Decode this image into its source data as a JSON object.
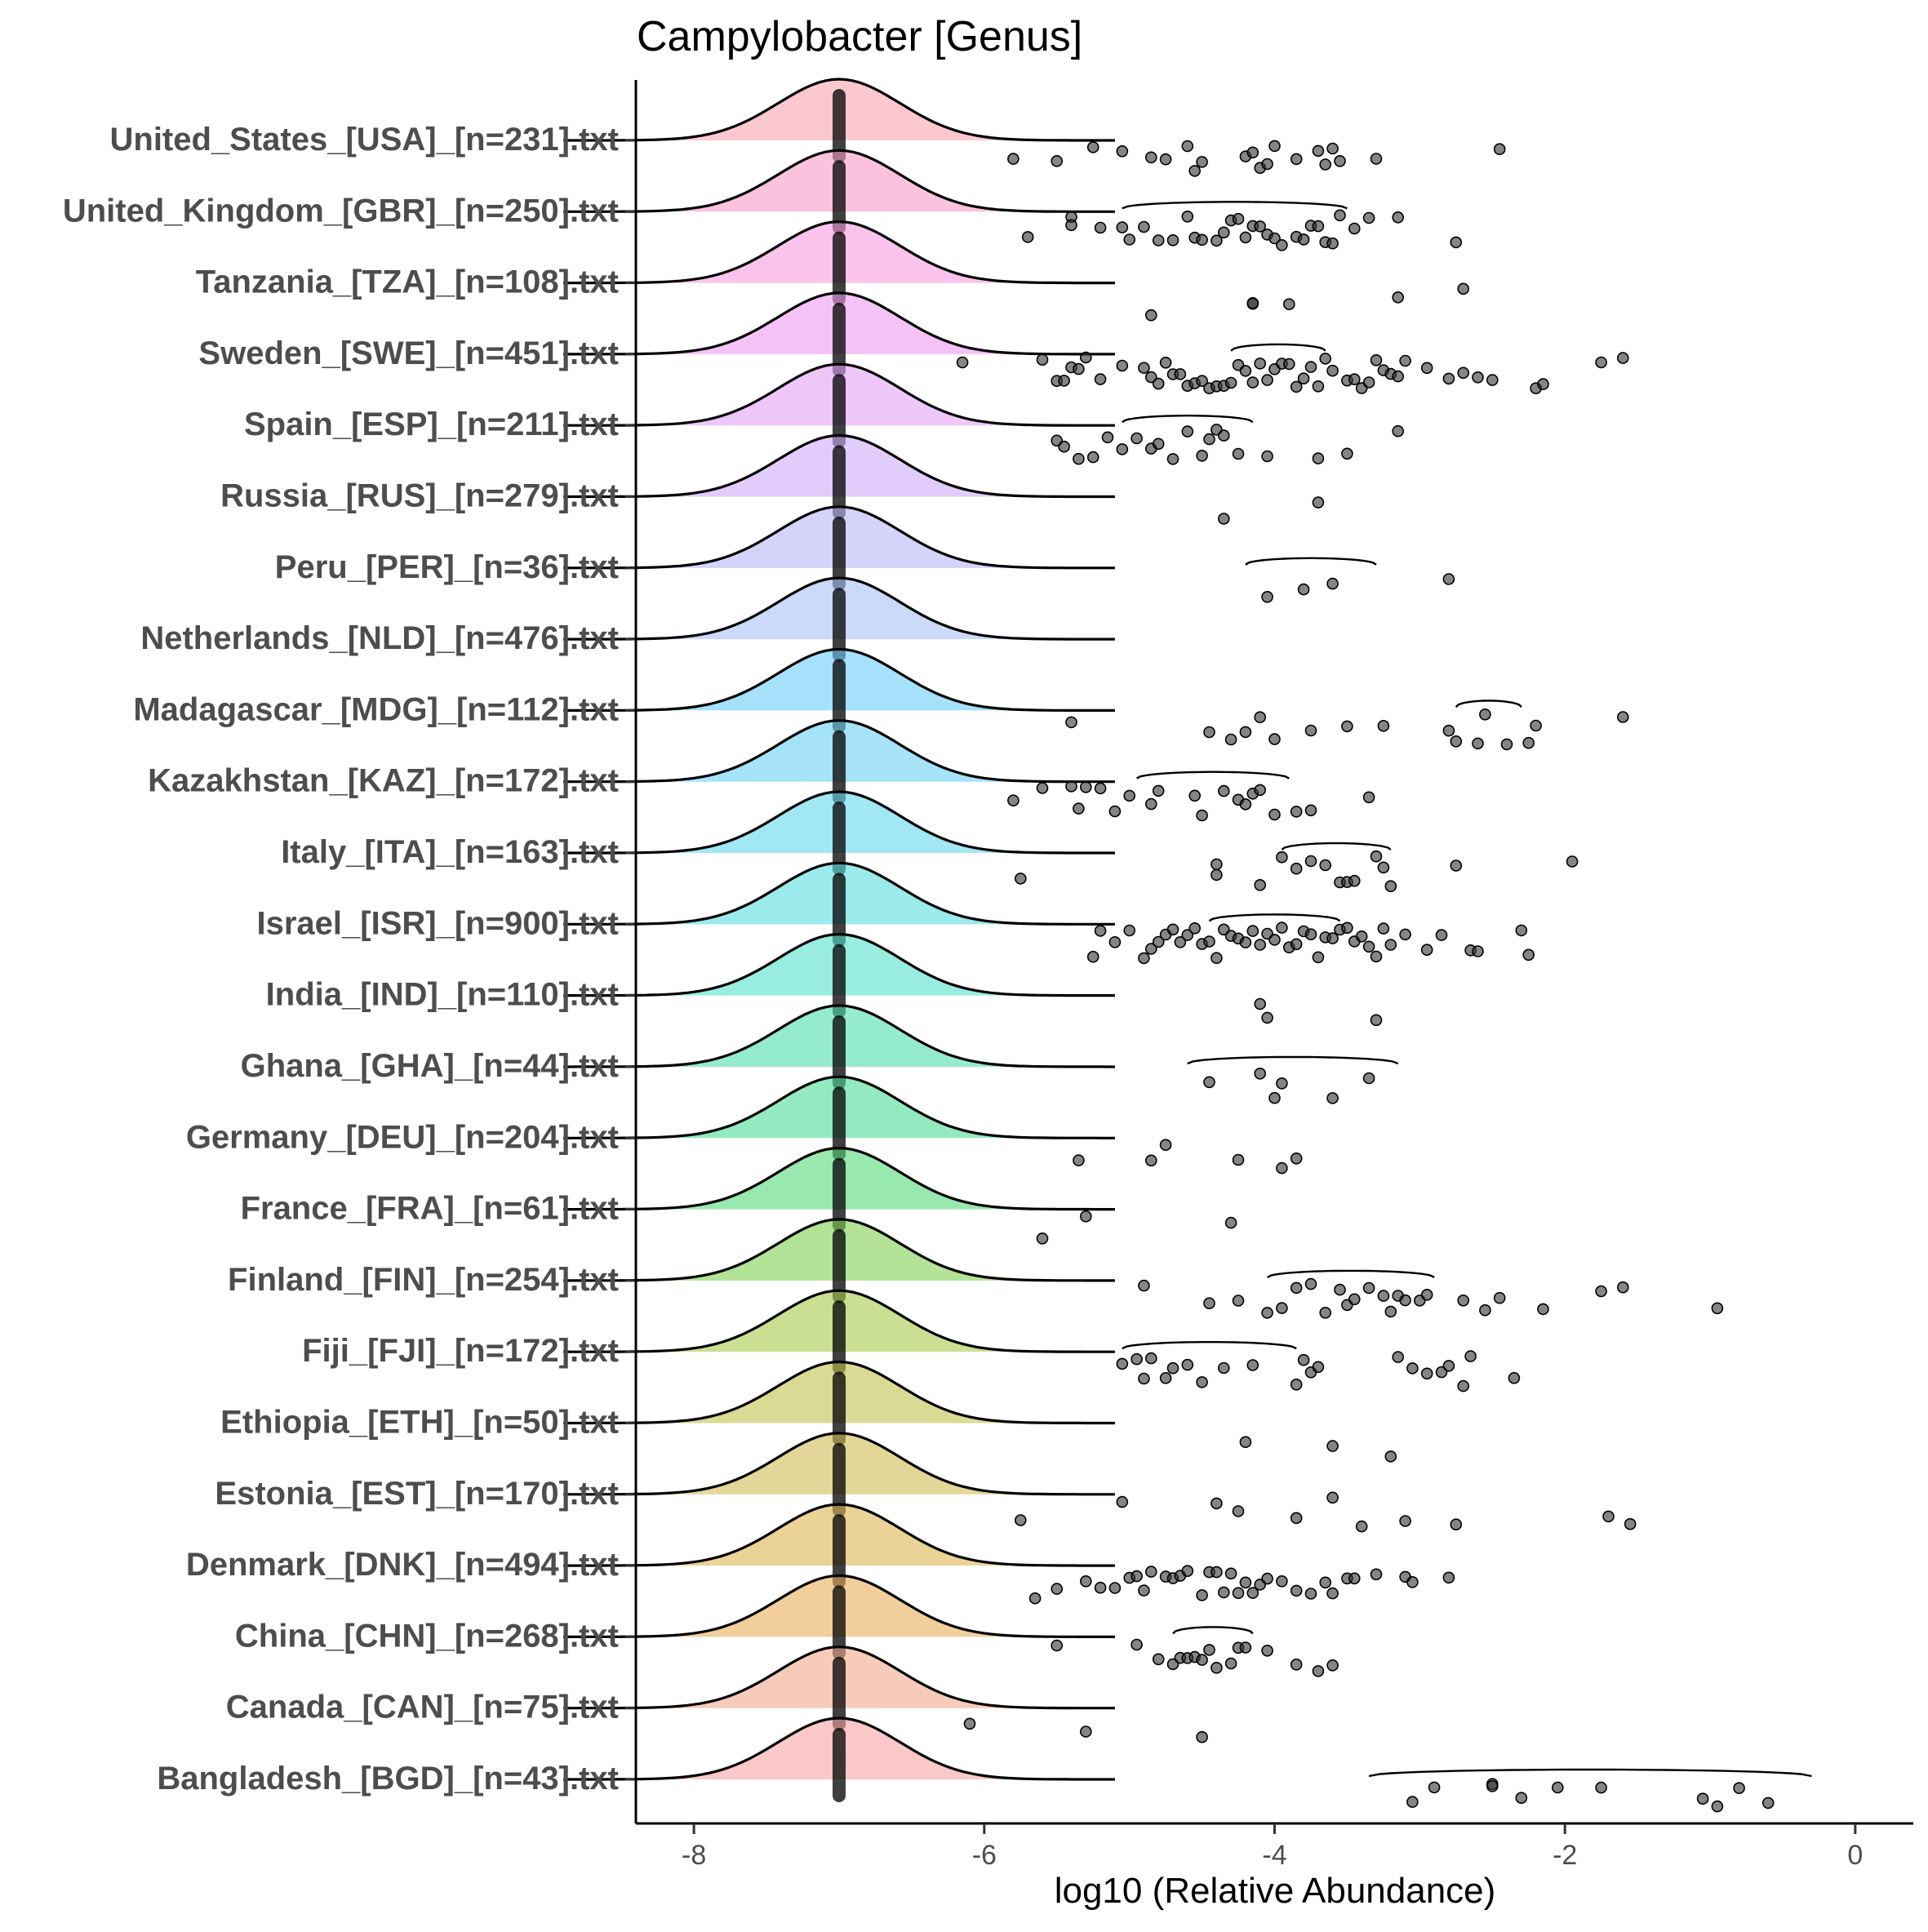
{
  "chart_data": {
    "type": "ridgeline-jitter",
    "title": "Campylobacter [Genus]",
    "xlabel": "log10 (Relative Abundance)",
    "ylabel": "",
    "xlim": [
      -8.4,
      0.4
    ],
    "xticks": [
      -8,
      -6,
      -4,
      -2,
      0
    ],
    "xtick_labels": [
      "-8",
      "-6",
      "-4",
      "-2",
      "0"
    ],
    "zero_placeholder_x": -7,
    "series": [
      {
        "name": "United_States_[USA]_[n=231].txt",
        "color": "#F8A4B0",
        "obs_density": null,
        "points": [
          -5.8,
          -5.5,
          -5.25,
          -5.05,
          -4.85,
          -4.75,
          -4.6,
          -4.55,
          -4.5,
          -4.2,
          -4.15,
          -4.1,
          -4.05,
          -4.0,
          -3.85,
          -3.7,
          -3.65,
          -3.6,
          -3.55,
          -3.3,
          -2.45
        ]
      },
      {
        "name": "United_Kingdom_[GBR]_[n=250].txt",
        "color": "#F899C6",
        "obs_density": [
          -5.05,
          -3.5
        ],
        "points": [
          -5.7,
          -5.4,
          -5.4,
          -5.2,
          -5.05,
          -5.0,
          -4.9,
          -4.8,
          -4.7,
          -4.6,
          -4.55,
          -4.5,
          -4.4,
          -4.35,
          -4.3,
          -4.25,
          -4.2,
          -4.15,
          -4.1,
          -4.05,
          -4.0,
          -3.95,
          -3.85,
          -3.8,
          -3.75,
          -3.7,
          -3.65,
          -3.6,
          -3.55,
          -3.45,
          -3.35,
          -3.15,
          -2.75
        ]
      },
      {
        "name": "Tanzania_[TZA]_[n=108].txt",
        "color": "#F59BE0",
        "obs_density": null,
        "points": [
          -4.85,
          -4.15,
          -4.15,
          -3.9,
          -3.15,
          -2.7
        ]
      },
      {
        "name": "Sweden_[SWE]_[n=451].txt",
        "color": "#EE9AF2",
        "obs_density": [
          -4.3,
          -3.65
        ],
        "points": [
          -6.15,
          -5.6,
          -5.5,
          -5.45,
          -5.4,
          -5.35,
          -5.3,
          -5.2,
          -5.05,
          -4.9,
          -4.85,
          -4.8,
          -4.75,
          -4.7,
          -4.65,
          -4.6,
          -4.55,
          -4.5,
          -4.45,
          -4.4,
          -4.35,
          -4.3,
          -4.25,
          -4.2,
          -4.15,
          -4.1,
          -4.05,
          -4.0,
          -3.95,
          -3.9,
          -3.85,
          -3.8,
          -3.75,
          -3.7,
          -3.65,
          -3.6,
          -3.5,
          -3.45,
          -3.4,
          -3.35,
          -3.3,
          -3.25,
          -3.2,
          -3.15,
          -3.1,
          -2.95,
          -2.8,
          -2.7,
          -2.6,
          -2.5,
          -2.2,
          -2.15,
          -1.75,
          -1.6
        ]
      },
      {
        "name": "Spain_[ESP]_[n=211].txt",
        "color": "#E2A1F7",
        "obs_density": [
          -5.05,
          -4.15
        ],
        "points": [
          -5.5,
          -5.45,
          -5.35,
          -5.25,
          -5.15,
          -5.05,
          -4.95,
          -4.85,
          -4.8,
          -4.7,
          -4.6,
          -4.5,
          -4.45,
          -4.4,
          -4.35,
          -4.25,
          -4.05,
          -3.7,
          -3.5,
          -3.15
        ]
      },
      {
        "name": "Russia_[RUS]_[n=279].txt",
        "color": "#CFAAF8",
        "obs_density": null,
        "points": [
          -4.35,
          -3.7
        ]
      },
      {
        "name": "Peru_[PER]_[n=36].txt",
        "color": "#BBB5F8",
        "obs_density": [
          -4.2,
          -3.3
        ],
        "points": [
          -4.05,
          -3.8,
          -3.6,
          -2.8
        ]
      },
      {
        "name": "Netherlands_[NLD]_[n=476].txt",
        "color": "#A8BFF8",
        "obs_density": null,
        "points": []
      },
      {
        "name": "Madagascar_[MDG]_[n=112].txt",
        "color": "#6ACDF8",
        "obs_density": [
          -2.75,
          -2.3
        ],
        "points": [
          -5.4,
          -4.45,
          -4.3,
          -4.2,
          -4.1,
          -4.0,
          -3.75,
          -3.5,
          -3.25,
          -2.8,
          -2.75,
          -2.6,
          -2.55,
          -2.4,
          -2.25,
          -2.2,
          -1.6
        ]
      },
      {
        "name": "Kazakhstan_[KAZ]_[n=172].txt",
        "color": "#6BD0F4",
        "obs_density": [
          -4.95,
          -3.9
        ],
        "points": [
          -5.8,
          -5.6,
          -5.4,
          -5.35,
          -5.3,
          -5.2,
          -5.1,
          -5.0,
          -4.85,
          -4.8,
          -4.55,
          -4.5,
          -4.35,
          -4.25,
          -4.2,
          -4.15,
          -4.1,
          -4.0,
          -3.85,
          -3.75,
          -3.35
        ]
      },
      {
        "name": "Italy_[ITA]_[n=163].txt",
        "color": "#64D8EC",
        "obs_density": [
          -3.95,
          -3.2
        ],
        "points": [
          -5.75,
          -4.4,
          -4.4,
          -4.1,
          -3.95,
          -3.85,
          -3.75,
          -3.65,
          -3.55,
          -3.5,
          -3.45,
          -3.3,
          -3.25,
          -3.2,
          -2.75,
          -1.95
        ]
      },
      {
        "name": "Israel_[ISR]_[n=900].txt",
        "color": "#5ADCDF",
        "obs_density": [
          -4.45,
          -3.55
        ],
        "points": [
          -5.25,
          -5.2,
          -5.1,
          -5.0,
          -4.9,
          -4.85,
          -4.8,
          -4.75,
          -4.7,
          -4.65,
          -4.6,
          -4.55,
          -4.5,
          -4.45,
          -4.4,
          -4.35,
          -4.3,
          -4.25,
          -4.2,
          -4.15,
          -4.1,
          -4.05,
          -4.0,
          -3.95,
          -3.9,
          -3.85,
          -3.8,
          -3.75,
          -3.7,
          -3.65,
          -3.6,
          -3.55,
          -3.5,
          -3.45,
          -3.4,
          -3.35,
          -3.3,
          -3.25,
          -3.2,
          -3.1,
          -2.95,
          -2.85,
          -2.65,
          -2.6,
          -2.3,
          -2.25
        ]
      },
      {
        "name": "India_[IND]_[n=110].txt",
        "color": "#55DFCB",
        "obs_density": null,
        "points": [
          -4.1,
          -4.05,
          -3.3
        ]
      },
      {
        "name": "Ghana_[GHA]_[n=44].txt",
        "color": "#4FDEB0",
        "obs_density": [
          -4.6,
          -3.15
        ],
        "points": [
          -4.45,
          -4.1,
          -4.0,
          -3.95,
          -3.6,
          -3.35
        ]
      },
      {
        "name": "Germany_[DEU]_[n=204].txt",
        "color": "#4CDC96",
        "obs_density": null,
        "points": [
          -5.35,
          -4.85,
          -4.75,
          -4.25,
          -3.95,
          -3.85
        ]
      },
      {
        "name": "France_[FRA]_[n=61].txt",
        "color": "#55D97C",
        "obs_density": null,
        "points": [
          -5.6,
          -5.3,
          -4.3
        ]
      },
      {
        "name": "Finland_[FIN]_[n=254].txt",
        "color": "#7FD052",
        "obs_density": [
          -4.05,
          -2.9
        ],
        "points": [
          -4.9,
          -4.45,
          -4.25,
          -4.05,
          -3.95,
          -3.85,
          -3.75,
          -3.65,
          -3.55,
          -3.5,
          -3.45,
          -3.35,
          -3.25,
          -3.2,
          -3.15,
          -3.1,
          -3.0,
          -2.95,
          -2.7,
          -2.55,
          -2.45,
          -2.15,
          -1.75,
          -1.6,
          -0.95
        ]
      },
      {
        "name": "Fiji_[FJI]_[n=172].txt",
        "color": "#A9C94A",
        "obs_density": [
          -5.05,
          -3.85
        ],
        "points": [
          -5.05,
          -4.95,
          -4.9,
          -4.85,
          -4.75,
          -4.7,
          -4.6,
          -4.5,
          -4.35,
          -4.15,
          -3.85,
          -3.8,
          -3.75,
          -3.7,
          -3.15,
          -3.05,
          -2.95,
          -2.85,
          -2.8,
          -2.7,
          -2.65,
          -2.35
        ]
      },
      {
        "name": "Ethiopia_[ETH]_[n=50].txt",
        "color": "#BFC24D",
        "obs_density": null,
        "points": [
          -4.2,
          -3.6,
          -3.2
        ]
      },
      {
        "name": "Estonia_[EST]_[n=170].txt",
        "color": "#CFBC55",
        "obs_density": null,
        "points": [
          -5.75,
          -5.05,
          -4.4,
          -4.25,
          -3.85,
          -3.6,
          -3.4,
          -3.1,
          -2.75,
          -1.7,
          -1.55
        ]
      },
      {
        "name": "Denmark_[DNK]_[n=494].txt",
        "color": "#DDB553",
        "obs_density": null,
        "points": [
          -5.65,
          -5.5,
          -5.3,
          -5.2,
          -5.1,
          -5.0,
          -4.95,
          -4.9,
          -4.85,
          -4.75,
          -4.7,
          -4.65,
          -4.6,
          -4.5,
          -4.45,
          -4.4,
          -4.35,
          -4.3,
          -4.25,
          -4.2,
          -4.15,
          -4.1,
          -4.05,
          -3.95,
          -3.85,
          -3.75,
          -3.65,
          -3.6,
          -3.5,
          -3.45,
          -3.3,
          -3.1,
          -3.05,
          -2.8
        ]
      },
      {
        "name": "China_[CHN]_[n=268].txt",
        "color": "#E8AE58",
        "obs_density": [
          -4.7,
          -4.15
        ],
        "points": [
          -5.5,
          -4.95,
          -4.8,
          -4.7,
          -4.65,
          -4.6,
          -4.55,
          -4.5,
          -4.45,
          -4.4,
          -4.3,
          -4.25,
          -4.2,
          -4.05,
          -3.85,
          -3.7,
          -3.6
        ]
      },
      {
        "name": "Canada_[CAN]_[n=75].txt",
        "color": "#F0A98A",
        "obs_density": null,
        "points": [
          -6.1,
          -5.3,
          -4.5
        ]
      },
      {
        "name": "Bangladesh_[BGD]_[n=43].txt",
        "color": "#F7A4A3",
        "obs_density": [
          -3.35,
          -0.3
        ],
        "points": [
          -3.05,
          -2.9,
          -2.5,
          -2.5,
          -2.3,
          -2.05,
          -1.75,
          -1.05,
          -0.95,
          -0.8,
          -0.6
        ]
      }
    ]
  }
}
